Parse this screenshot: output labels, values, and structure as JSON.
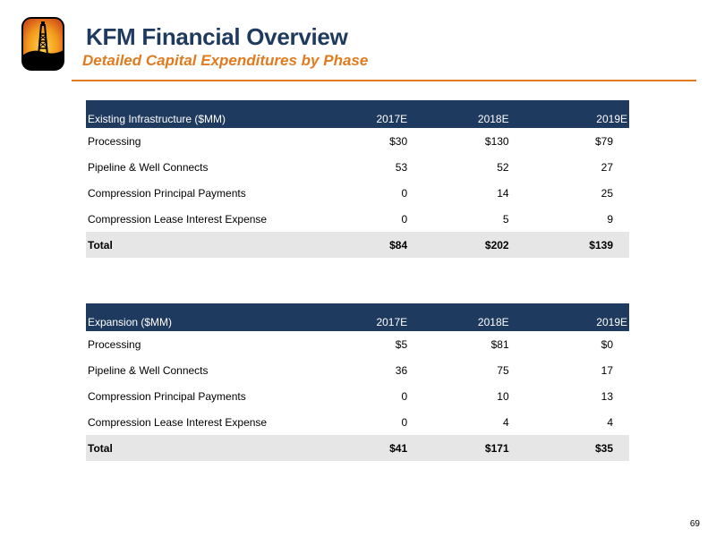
{
  "header": {
    "title": "KFM Financial Overview",
    "subtitle": "Detailed Capital Expenditures by Phase",
    "logo_icon": "oil-derrick-logo-icon"
  },
  "colors": {
    "navy": "#1f3a5f",
    "orange": "#e07b1f",
    "total_row": "#e6e6e6"
  },
  "tables": [
    {
      "heading": "Existing Infrastructure ($MM)",
      "years": [
        "2017E",
        "2018E",
        "2019E"
      ],
      "rows": [
        {
          "label": "Processing",
          "values": [
            "$30",
            "$130",
            "$79"
          ]
        },
        {
          "label": "Pipeline & Well Connects",
          "values": [
            "53",
            "52",
            "27"
          ]
        },
        {
          "label": "Compression Principal Payments",
          "values": [
            "0",
            "14",
            "25"
          ]
        },
        {
          "label": "Compression Lease Interest Expense",
          "values": [
            "0",
            "5",
            "9"
          ]
        }
      ],
      "total": {
        "label": "Total",
        "values": [
          "$84",
          "$202",
          "$139"
        ]
      }
    },
    {
      "heading": "Expansion ($MM)",
      "years": [
        "2017E",
        "2018E",
        "2019E"
      ],
      "rows": [
        {
          "label": "Processing",
          "values": [
            "$5",
            "$81",
            "$0"
          ]
        },
        {
          "label": "Pipeline & Well Connects",
          "values": [
            "36",
            "75",
            "17"
          ]
        },
        {
          "label": "Compression Principal Payments",
          "values": [
            "0",
            "10",
            "13"
          ]
        },
        {
          "label": "Compression Lease Interest Expense",
          "values": [
            "0",
            "4",
            "4"
          ]
        }
      ],
      "total": {
        "label": "Total",
        "values": [
          "$41",
          "$171",
          "$35"
        ]
      }
    }
  ],
  "page_number": "69"
}
